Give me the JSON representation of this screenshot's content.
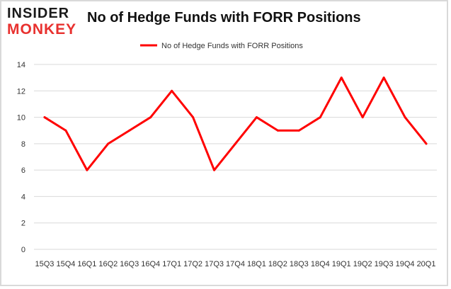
{
  "logo": {
    "line1": "INSIDER",
    "line2": "MONKEY"
  },
  "chart_data": {
    "type": "line",
    "title": "No of Hedge Funds with FORR Positions",
    "xlabel": "",
    "ylabel": "",
    "categories": [
      "15Q3",
      "15Q4",
      "16Q1",
      "16Q2",
      "16Q3",
      "16Q4",
      "17Q1",
      "17Q2",
      "17Q3",
      "17Q4",
      "18Q1",
      "18Q2",
      "18Q3",
      "18Q4",
      "19Q1",
      "19Q2",
      "19Q3",
      "19Q4",
      "20Q1"
    ],
    "series": [
      {
        "name": "No of Hedge Funds with FORR Positions",
        "values": [
          10,
          9,
          6,
          8,
          9,
          10,
          12,
          10,
          6,
          8,
          10,
          9,
          9,
          10,
          13,
          10,
          13,
          10,
          8
        ],
        "color": "#ff0000"
      }
    ],
    "ylim": [
      0,
      14
    ],
    "yticks": [
      0,
      2,
      4,
      6,
      8,
      10,
      12,
      14
    ],
    "grid": true,
    "legend_position": "top-center"
  },
  "colors": {
    "line": "#ff0000",
    "grid": "#d9d9d9",
    "brand_red": "#e8312f"
  }
}
